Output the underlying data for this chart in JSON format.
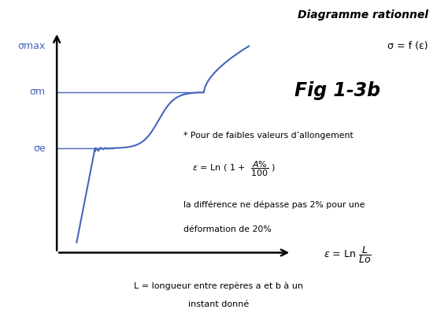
{
  "title_line1": "Diagramme rationnel",
  "title_line2": "σ = f (ε)",
  "fig_label": "Fig 1-3b",
  "annotation1": "* Pour de faibles valeurs d’allongement",
  "annotation3": "la différence ne dépasse pas 2% pour une",
  "annotation4": "déformation de 20%",
  "bottom_text1": "L = longueur entre repères a et b à un",
  "bottom_text2": "instant donné",
  "ylabel_sigmax": "σmax",
  "ylabel_sigm": "σm",
  "ylabel_sige": "σe",
  "curve_color": "#4466bb",
  "axes_color": "#000000",
  "label_color": "#4466bb",
  "background_color": "#ffffff",
  "sigma_e": 0.42,
  "sigma_m": 0.7,
  "sigma_max": 0.93
}
